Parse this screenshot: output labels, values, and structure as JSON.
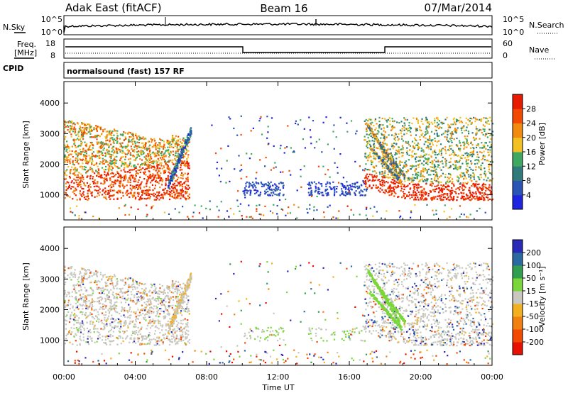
{
  "header": {
    "station": "Adak East (fitACF)",
    "beam": "Beam 16",
    "date": "07/Mar/2014"
  },
  "top_panel": {
    "left_label": "N.Sky",
    "left_ticks": [
      "10^5",
      "10^0"
    ],
    "right_label": "N.Search",
    "right_ticks": [
      "10^5",
      "10^0"
    ]
  },
  "freq_panel": {
    "left_label_1": "Freq.",
    "left_label_2": "[MHz]",
    "left_ticks": [
      "18",
      "8"
    ],
    "right_label": "Nave",
    "right_ticks": [
      "60",
      "0"
    ]
  },
  "cpid": {
    "label": "CPID",
    "program": "normalsound (fast) 157 RF"
  },
  "colors": {
    "power": [
      "#1f24e0",
      "#2a55b5",
      "#2f7a7a",
      "#3fa860",
      "#f2c020",
      "#f28a10",
      "#f24a00",
      "#ea1a00"
    ],
    "velocity": [
      "#2a2ab8",
      "#2a6aa0",
      "#30a050",
      "#7ad63a",
      "#c8c8c0",
      "#f2b020",
      "#f28010",
      "#f24a00",
      "#e81000"
    ]
  },
  "chart_data": [
    {
      "type": "heatmap",
      "name": "power",
      "xlabel": "",
      "ylabel": "Slant Range [km]",
      "x_ticks": [
        "",
        "",
        "",
        "",
        "",
        "",
        ""
      ],
      "y_ticks": [
        "1000",
        "2000",
        "3000",
        "4000"
      ],
      "x_range_hours": [
        0,
        24
      ],
      "y_range_km": [
        180,
        4700
      ],
      "colorbar": {
        "label": "Power [dB]",
        "ticks": [
          "4",
          "8",
          "12",
          "16",
          "20",
          "24",
          "28"
        ],
        "range": [
          0,
          32
        ]
      },
      "regions": [
        {
          "t": [
            0.0,
            7.1
          ],
          "desc": "strong near range echoes",
          "level": 7
        },
        {
          "t": [
            6.0,
            7.2
          ],
          "desc": "oblique streak",
          "level": 2
        },
        {
          "t": [
            10.0,
            17.0
          ],
          "desc": "weak ionospheric",
          "level": 1
        },
        {
          "t": [
            16.6,
            24.0
          ],
          "desc": "recovery echoes",
          "level": 6
        }
      ]
    },
    {
      "type": "heatmap",
      "name": "velocity",
      "xlabel": "Time UT",
      "ylabel": "Slant Range [km]",
      "x_ticks": [
        "00:00",
        "04:00",
        "08:00",
        "12:00",
        "16:00",
        "20:00",
        "00:00"
      ],
      "y_ticks": [
        "1000",
        "2000",
        "3000",
        "4000"
      ],
      "x_range_hours": [
        0,
        24
      ],
      "y_range_km": [
        180,
        4700
      ],
      "colorbar": {
        "label": "Velocity [m s⁻¹]",
        "ticks": [
          "200",
          "100",
          "50",
          "15",
          "-15",
          "-50",
          "-100",
          "-200"
        ],
        "range": [
          -250,
          250
        ]
      }
    }
  ]
}
